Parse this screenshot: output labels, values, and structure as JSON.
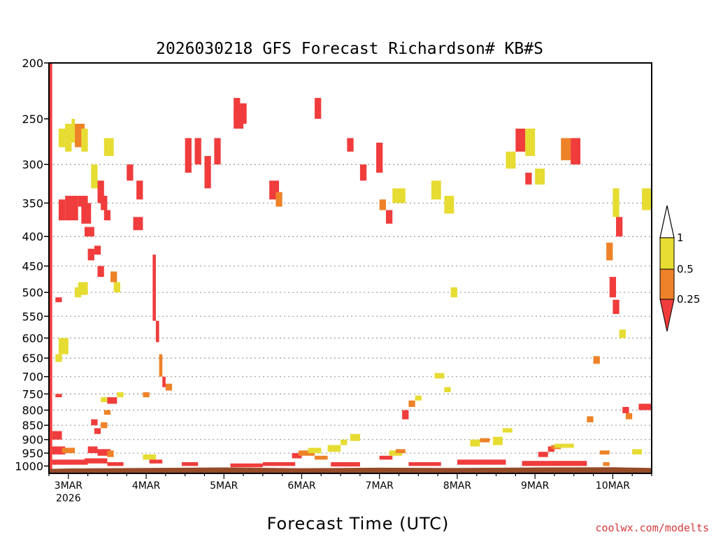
{
  "chart_data": {
    "type": "heatmap",
    "title": "2026030218 GFS Forecast Richardson# KB#S",
    "xlabel": "Forecast Time (UTC)",
    "ylabel": "",
    "y_axis": {
      "scale": "log-pressure",
      "ylim": [
        1030,
        200
      ],
      "ticks": [
        200,
        250,
        300,
        350,
        400,
        450,
        500,
        550,
        600,
        650,
        700,
        750,
        800,
        850,
        900,
        950,
        1000
      ],
      "dotted_gridlines": [
        300,
        350,
        400,
        450,
        500,
        550,
        600,
        650,
        700,
        750,
        800,
        850,
        900,
        950
      ]
    },
    "x_axis": {
      "xlim_hours_from_3MAR00": [
        -6,
        180
      ],
      "ticks": [
        {
          "hour": 0,
          "label": "3MAR",
          "sublabel": "2026"
        },
        {
          "hour": 24,
          "label": "4MAR"
        },
        {
          "hour": 48,
          "label": "5MAR"
        },
        {
          "hour": 72,
          "label": "6MAR"
        },
        {
          "hour": 96,
          "label": "7MAR"
        },
        {
          "hour": 120,
          "label": "8MAR"
        },
        {
          "hour": 144,
          "label": "9MAR"
        },
        {
          "hour": 168,
          "label": "10MAR"
        }
      ]
    },
    "colorbar": {
      "levels": [
        "0.25",
        "0.5",
        "1"
      ],
      "categories": [
        {
          "range": "< 0.25",
          "color": "#f03c3c"
        },
        {
          "range": "0.25 – 0.5",
          "color": "#ee8228"
        },
        {
          "range": "0.5 – 1",
          "color": "#e6dc32"
        }
      ]
    },
    "ground_color": "#964b28",
    "note": "cells: [hour_start, hour_end, p_top, p_bottom, category] category 0=<0.25 red, 1=0.25-0.5 orange, 2=0.5-1 yellow",
    "cells": [
      [
        -6,
        -5,
        200,
        1030,
        0
      ],
      [
        1,
        2,
        250,
        275,
        2
      ],
      [
        2,
        5,
        255,
        280,
        1
      ],
      [
        4,
        6,
        260,
        285,
        2
      ],
      [
        -3,
        -1,
        260,
        280,
        2
      ],
      [
        -1,
        1,
        255,
        285,
        2
      ],
      [
        -1,
        3,
        340,
        375,
        0
      ],
      [
        -3,
        -1,
        345,
        375,
        0
      ],
      [
        3,
        6,
        340,
        355,
        0
      ],
      [
        4,
        7,
        350,
        380,
        0
      ],
      [
        5,
        8,
        385,
        400,
        0
      ],
      [
        10,
        12,
        340,
        360,
        0
      ],
      [
        11,
        13,
        360,
        375,
        0
      ],
      [
        11,
        14,
        270,
        290,
        2
      ],
      [
        7,
        9,
        300,
        330,
        2
      ],
      [
        9,
        11,
        320,
        350,
        0
      ],
      [
        6,
        8,
        420,
        440,
        0
      ],
      [
        8,
        10,
        415,
        430,
        0
      ],
      [
        9,
        11,
        450,
        470,
        0
      ],
      [
        13,
        15,
        460,
        480,
        1
      ],
      [
        14,
        16,
        480,
        500,
        2
      ],
      [
        2,
        4,
        490,
        510,
        2
      ],
      [
        3,
        6,
        480,
        505,
        2
      ],
      [
        -4,
        -2,
        510,
        520,
        0
      ],
      [
        -4,
        -2,
        640,
        660,
        2
      ],
      [
        -3,
        0,
        600,
        640,
        2
      ],
      [
        -4,
        -2,
        750,
        760,
        0
      ],
      [
        -5,
        -2,
        870,
        900,
        0
      ],
      [
        -5,
        -1,
        925,
        955,
        0
      ],
      [
        -2,
        2,
        930,
        950,
        1
      ],
      [
        6,
        9,
        925,
        950,
        0
      ],
      [
        9,
        13,
        935,
        960,
        0
      ],
      [
        12,
        14,
        940,
        965,
        1
      ],
      [
        -5,
        6,
        975,
        995,
        0
      ],
      [
        5,
        12,
        970,
        990,
        0
      ],
      [
        12,
        17,
        985,
        1000,
        0
      ],
      [
        11,
        13,
        800,
        815,
        1
      ],
      [
        10,
        12,
        760,
        775,
        2
      ],
      [
        12,
        15,
        760,
        780,
        0
      ],
      [
        15,
        17,
        745,
        760,
        2
      ],
      [
        8,
        10,
        860,
        880,
        0
      ],
      [
        7,
        9,
        830,
        850,
        0
      ],
      [
        10,
        12,
        840,
        860,
        1
      ],
      [
        20,
        23,
        370,
        390,
        0
      ],
      [
        18,
        20,
        300,
        320,
        0
      ],
      [
        21,
        23,
        320,
        345,
        0
      ],
      [
        26,
        27,
        430,
        470,
        0
      ],
      [
        26,
        27,
        470,
        560,
        0
      ],
      [
        27,
        28,
        560,
        610,
        0
      ],
      [
        28,
        29,
        640,
        700,
        1
      ],
      [
        29,
        30,
        700,
        730,
        0
      ],
      [
        30,
        32,
        720,
        740,
        1
      ],
      [
        23,
        25,
        745,
        760,
        1
      ],
      [
        23,
        27,
        955,
        975,
        2
      ],
      [
        25,
        29,
        975,
        990,
        0
      ],
      [
        36,
        38,
        270,
        310,
        0
      ],
      [
        39,
        41,
        270,
        300,
        0
      ],
      [
        42,
        44,
        290,
        330,
        0
      ],
      [
        45,
        47,
        270,
        300,
        0
      ],
      [
        51,
        53,
        230,
        250,
        0
      ],
      [
        51,
        54,
        240,
        260,
        0
      ],
      [
        53,
        55,
        235,
        255,
        0
      ],
      [
        62,
        65,
        320,
        345,
        0
      ],
      [
        64,
        66,
        335,
        355,
        1
      ],
      [
        76,
        78,
        230,
        250,
        0
      ],
      [
        86,
        88,
        270,
        285,
        0
      ],
      [
        90,
        92,
        300,
        320,
        0
      ],
      [
        95,
        97,
        275,
        310,
        0
      ],
      [
        98,
        100,
        360,
        380,
        0
      ],
      [
        96,
        98,
        345,
        360,
        1
      ],
      [
        112,
        115,
        320,
        345,
        2
      ],
      [
        100,
        104,
        330,
        350,
        2
      ],
      [
        116,
        119,
        340,
        365,
        2
      ],
      [
        69,
        72,
        950,
        970,
        0
      ],
      [
        71,
        76,
        940,
        960,
        1
      ],
      [
        74,
        78,
        930,
        950,
        2
      ],
      [
        76,
        80,
        960,
        975,
        1
      ],
      [
        80,
        84,
        920,
        945,
        2
      ],
      [
        84,
        86,
        900,
        920,
        2
      ],
      [
        87,
        90,
        880,
        905,
        2
      ],
      [
        96,
        100,
        960,
        975,
        0
      ],
      [
        99,
        103,
        940,
        960,
        2
      ],
      [
        101,
        104,
        935,
        950,
        1
      ],
      [
        103,
        105,
        800,
        830,
        0
      ],
      [
        105,
        107,
        770,
        790,
        1
      ],
      [
        107,
        109,
        755,
        770,
        2
      ],
      [
        113,
        116,
        690,
        705,
        2
      ],
      [
        116,
        118,
        730,
        745,
        2
      ],
      [
        118,
        120,
        490,
        510,
        2
      ],
      [
        124,
        127,
        900,
        925,
        2
      ],
      [
        127,
        130,
        895,
        910,
        1
      ],
      [
        131,
        134,
        890,
        920,
        2
      ],
      [
        134,
        137,
        860,
        875,
        2
      ],
      [
        138,
        141,
        260,
        285,
        0
      ],
      [
        141,
        144,
        260,
        290,
        2
      ],
      [
        135,
        138,
        285,
        305,
        2
      ],
      [
        141,
        143,
        310,
        325,
        0
      ],
      [
        144,
        147,
        305,
        325,
        2
      ],
      [
        152,
        155,
        270,
        295,
        1
      ],
      [
        155,
        158,
        270,
        300,
        0
      ],
      [
        148,
        150,
        925,
        945,
        0
      ],
      [
        149,
        152,
        920,
        935,
        1
      ],
      [
        145,
        148,
        945,
        965,
        0
      ],
      [
        150,
        156,
        915,
        930,
        2
      ],
      [
        160,
        162,
        820,
        840,
        1
      ],
      [
        162,
        164,
        645,
        665,
        1
      ],
      [
        164,
        167,
        940,
        955,
        1
      ],
      [
        165,
        167,
        985,
        1000,
        1
      ],
      [
        168,
        170,
        330,
        370,
        2
      ],
      [
        169,
        171,
        370,
        400,
        0
      ],
      [
        166,
        168,
        410,
        440,
        1
      ],
      [
        167,
        169,
        470,
        510,
        0
      ],
      [
        168,
        170,
        515,
        545,
        0
      ],
      [
        170,
        172,
        580,
        600,
        2
      ],
      [
        171,
        173,
        790,
        810,
        0
      ],
      [
        172,
        174,
        810,
        830,
        1
      ],
      [
        174,
        177,
        935,
        955,
        2
      ],
      [
        176,
        180,
        780,
        800,
        0
      ],
      [
        177,
        180,
        330,
        360,
        2
      ],
      [
        35,
        40,
        985,
        1000,
        0
      ],
      [
        50,
        60,
        990,
        1005,
        0
      ],
      [
        60,
        70,
        985,
        1000,
        0
      ],
      [
        81,
        90,
        985,
        1002,
        0
      ],
      [
        105,
        115,
        985,
        1000,
        0
      ],
      [
        120,
        135,
        975,
        995,
        0
      ],
      [
        140,
        160,
        980,
        1000,
        0
      ]
    ],
    "ground_surface_hpa": [
      [
        -6,
        1012
      ],
      [
        0,
        1010
      ],
      [
        24,
        1008
      ],
      [
        48,
        1006
      ],
      [
        72,
        1009
      ],
      [
        96,
        1007
      ],
      [
        120,
        1008
      ],
      [
        144,
        1006
      ],
      [
        168,
        1005
      ],
      [
        180,
        1008
      ]
    ]
  },
  "credit": "coolwx.com/modelts"
}
